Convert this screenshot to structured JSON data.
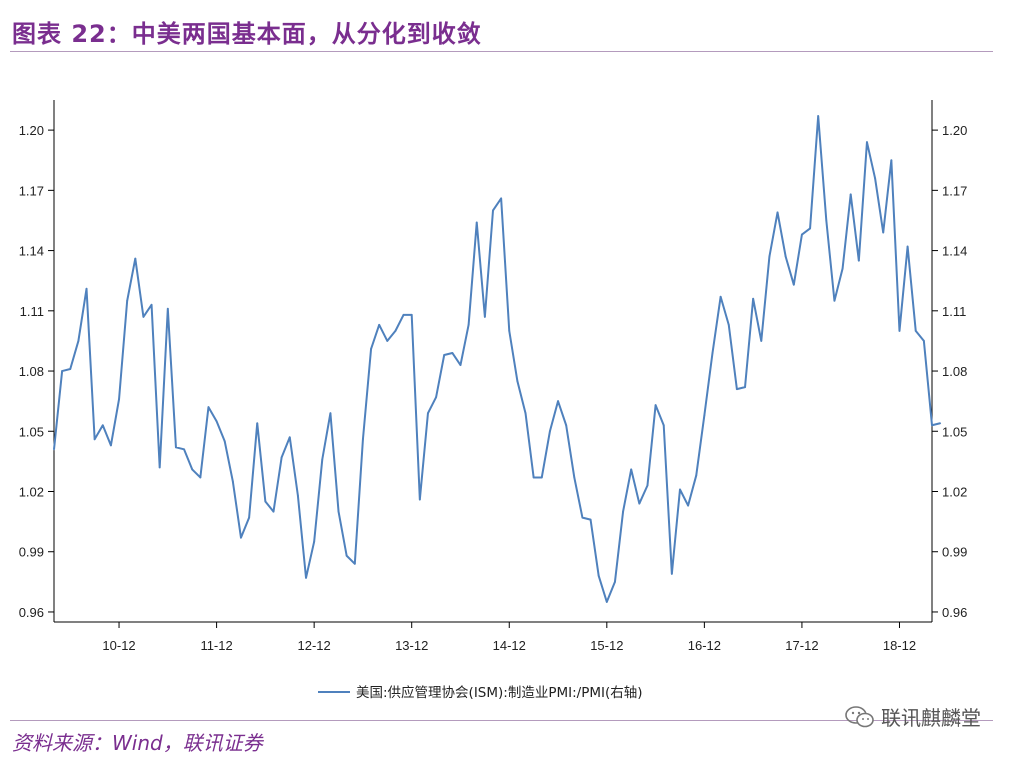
{
  "figure": {
    "title": "图表 22：中美两国基本面，从分化到收敛",
    "source": "资料来源：Wind，联讯证券",
    "watermark": "联讯麒麟堂"
  },
  "colors": {
    "title": "#7a2e8f",
    "line": "#4f81bd",
    "axis": "#000000"
  },
  "chart_data": {
    "type": "line",
    "title": "",
    "xlabel": "",
    "ylabel": "",
    "ylim": [
      0.955,
      1.215
    ],
    "yticks": [
      "1.20",
      "1.17",
      "1.14",
      "1.11",
      "1.08",
      "1.05",
      "1.02",
      "0.99",
      "0.96"
    ],
    "ytick_values": [
      1.2,
      1.17,
      1.14,
      1.11,
      1.08,
      1.05,
      1.02,
      0.99,
      0.96
    ],
    "right_axis": true,
    "xlim": [
      0,
      108
    ],
    "xticks": [
      "10-12",
      "11-12",
      "12-12",
      "13-12",
      "14-12",
      "15-12",
      "16-12",
      "17-12",
      "18-12"
    ],
    "xtick_positions": [
      8,
      20,
      32,
      44,
      56,
      68,
      80,
      92,
      104
    ],
    "grid": false,
    "legend_position": "bottom-center",
    "series": [
      {
        "name": "美国:供应管理协会(ISM):制造业PMI:/PMI(右轴)",
        "values": [
          1.041,
          1.08,
          1.081,
          1.095,
          1.121,
          1.046,
          1.053,
          1.043,
          1.066,
          1.115,
          1.136,
          1.107,
          1.113,
          1.032,
          1.111,
          1.042,
          1.041,
          1.031,
          1.027,
          1.062,
          1.055,
          1.045,
          1.025,
          0.997,
          1.007,
          1.054,
          1.015,
          1.01,
          1.037,
          1.047,
          1.018,
          0.977,
          0.995,
          1.036,
          1.059,
          1.01,
          0.988,
          0.984,
          1.046,
          1.091,
          1.103,
          1.095,
          1.1,
          1.108,
          1.108,
          1.016,
          1.059,
          1.067,
          1.088,
          1.089,
          1.083,
          1.103,
          1.154,
          1.107,
          1.16,
          1.166,
          1.1,
          1.075,
          1.059,
          1.027,
          1.027,
          1.05,
          1.065,
          1.053,
          1.027,
          1.007,
          1.006,
          0.978,
          0.965,
          0.975,
          1.01,
          1.031,
          1.014,
          1.023,
          1.063,
          1.053,
          0.979,
          1.021,
          1.013,
          1.028,
          1.058,
          1.089,
          1.117,
          1.103,
          1.071,
          1.072,
          1.116,
          1.095,
          1.137,
          1.159,
          1.137,
          1.123,
          1.148,
          1.151,
          1.207,
          1.155,
          1.115,
          1.131,
          1.168,
          1.135,
          1.194,
          1.176,
          1.149,
          1.185,
          1.1,
          1.142,
          1.1,
          1.095,
          1.053,
          1.054
        ]
      }
    ]
  }
}
